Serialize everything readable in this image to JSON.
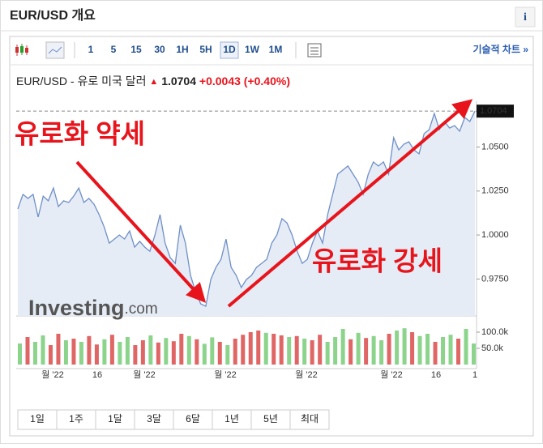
{
  "header": {
    "title": "EUR/USD 개요",
    "info": "i",
    "chart_link": "기술적 차트 »"
  },
  "toolbar": {
    "intervals": [
      "1",
      "5",
      "15",
      "30",
      "1H",
      "5H",
      "1D",
      "1W",
      "1M"
    ],
    "selected": 6
  },
  "quote": {
    "name": "EUR/USD - 유로 미국 달러",
    "change": "+0.0043",
    "change_pct": "(+0.40%)"
  },
  "logo": {
    "brand": "Investing",
    "suffix": ".com"
  },
  "ranges": [
    "1일",
    "1주",
    "1달",
    "3달",
    "6달",
    "1년",
    "5년",
    "최대"
  ],
  "chart_data": {
    "type": "area",
    "annotations": [
      "유로화 약세",
      "유로화 강세"
    ],
    "series": [
      {
        "color": "#6f8fc9",
        "values": [
          1.0148,
          1.0231,
          1.0208,
          1.0231,
          1.0102,
          1.0221,
          1.0194,
          1.0267,
          1.0162,
          1.0194,
          1.0185,
          1.0221,
          1.0267,
          1.0185,
          1.0208,
          1.0175,
          1.0116,
          1.0046,
          0.9954,
          0.9977,
          1.0,
          0.9977,
          1.0023,
          0.9931,
          0.9964,
          0.9931,
          0.9908,
          1.0,
          1.0116,
          0.9954,
          0.9872,
          0.9839,
          1.0056,
          0.9954,
          0.977,
          0.9678,
          0.9609,
          0.9595,
          0.9747,
          0.9816,
          0.9862,
          0.9977,
          0.9816,
          0.977,
          0.9701,
          0.9747,
          0.977,
          0.9816,
          0.9839,
          0.9862,
          0.9954,
          1.0,
          1.0093,
          1.0069,
          1.0,
          0.9908,
          0.9839,
          0.9862,
          0.9954,
          1.0023,
          0.9954,
          1.0116,
          1.0231,
          1.0346,
          1.0369,
          1.0392,
          1.0346,
          1.03,
          1.0231,
          1.0346,
          1.0415,
          1.0392,
          1.0415,
          1.0346,
          1.0553,
          1.0484,
          1.0516,
          1.053,
          1.0484,
          1.0461,
          1.0576,
          1.0599,
          1.0691,
          1.0599,
          1.0645,
          1.0608,
          1.0622,
          1.059,
          1.0668,
          1.0645,
          1.0704
        ]
      }
    ],
    "ylim": [
      0.954,
      1.076
    ],
    "yticks": [
      {
        "value": 0.975,
        "label": "0.9750"
      },
      {
        "value": 1.0,
        "label": "1.0000"
      },
      {
        "value": 1.025,
        "label": "1.0250"
      },
      {
        "value": 1.05,
        "label": "1.0500"
      }
    ],
    "xtick_labels": [
      "월 '22",
      "16",
      "월 '22",
      "월 '22",
      "월 '22",
      "월 '22",
      "16",
      "1"
    ],
    "volume": {
      "values": [
        65000,
        85000,
        70000,
        90000,
        60000,
        95000,
        75000,
        80000,
        70000,
        88000,
        62000,
        78000,
        92000,
        70000,
        85000,
        60000,
        75000,
        90000,
        68000,
        82000,
        72000,
        95000,
        88000,
        78000,
        64000,
        84000,
        70000,
        60000,
        80000,
        92000,
        100000,
        105000,
        98000,
        95000,
        90000,
        85000,
        88000,
        80000,
        75000,
        92000,
        70000,
        85000,
        110000,
        78000,
        98000,
        82000,
        88000,
        75000,
        95000,
        105000,
        112000,
        100000,
        88000,
        95000,
        70000,
        85000,
        92000,
        80000,
        110000,
        65000
      ],
      "colors": [
        "#8cd48c",
        "#e06666",
        "#8cd48c",
        "#8cd48c",
        "#e06666",
        "#e06666",
        "#8cd48c",
        "#e06666",
        "#8cd48c",
        "#e06666",
        "#e06666",
        "#8cd48c",
        "#e06666",
        "#8cd48c",
        "#8cd48c",
        "#e06666",
        "#e06666",
        "#8cd48c",
        "#e06666",
        "#8cd48c",
        "#e06666",
        "#e06666",
        "#8cd48c",
        "#e06666",
        "#8cd48c",
        "#8cd48c",
        "#e06666",
        "#8cd48c",
        "#e06666",
        "#e06666",
        "#e06666",
        "#e06666",
        "#8cd48c",
        "#e06666",
        "#e06666",
        "#8cd48c",
        "#e06666",
        "#8cd48c",
        "#e06666",
        "#e06666",
        "#8cd48c",
        "#8cd48c",
        "#8cd48c",
        "#e06666",
        "#8cd48c",
        "#e06666",
        "#8cd48c",
        "#8cd48c",
        "#e06666",
        "#8cd48c",
        "#8cd48c",
        "#e06666",
        "#8cd48c",
        "#8cd48c",
        "#e06666",
        "#8cd48c",
        "#8cd48c",
        "#e06666",
        "#8cd48c",
        "#8cd48c"
      ],
      "ylim": [
        0,
        140000
      ],
      "yticks": [
        {
          "value": 50000,
          "label": "50.0k"
        },
        {
          "value": 100000,
          "label": "100.0k"
        }
      ]
    }
  }
}
